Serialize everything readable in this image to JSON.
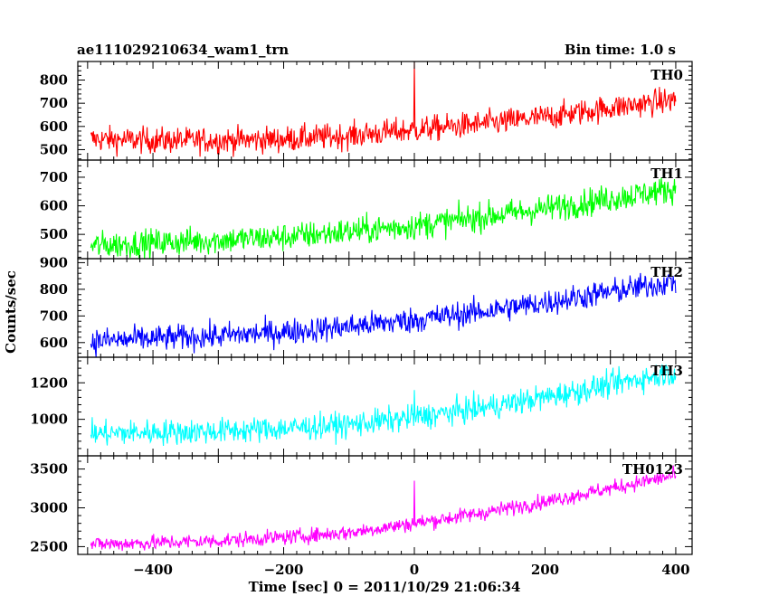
{
  "chart_data": {
    "type": "line",
    "title": "ae111029210634_wam1_trn",
    "subtitle": "Bin time: 1.0 s",
    "xlabel": "Time [sec] 0 = 2011/10/29 21:06:34",
    "ylabel": "Counts/sec",
    "xlim": [
      -515,
      425
    ],
    "x_ticks": [
      "−400",
      "−200",
      "0",
      "200",
      "400"
    ],
    "grid": false,
    "panels": [
      {
        "name": "TH0",
        "color": "#ff0000",
        "ylim": [
          455,
          880
        ],
        "y_ticks": [
          "500",
          "600",
          "700",
          "800"
        ],
        "x": [
          -495,
          -400,
          -300,
          -200,
          -100,
          0,
          100,
          200,
          300,
          400
        ],
        "values": [
          545,
          540,
          540,
          545,
          560,
          585,
          610,
          640,
          680,
          715
        ],
        "noise": 40,
        "spikes": [
          {
            "x": 0,
            "value": 880
          }
        ]
      },
      {
        "name": "TH1",
        "color": "#00ff00",
        "ylim": [
          415,
          760
        ],
        "y_ticks": [
          "500",
          "600",
          "700"
        ],
        "x": [
          -495,
          -400,
          -300,
          -200,
          -100,
          0,
          100,
          200,
          300,
          400
        ],
        "values": [
          460,
          470,
          480,
          490,
          510,
          530,
          560,
          590,
          625,
          660
        ],
        "noise": 35,
        "spikes": []
      },
      {
        "name": "TH2",
        "color": "#0000ff",
        "ylim": [
          545,
          915
        ],
        "y_ticks": [
          "600",
          "700",
          "800",
          "900"
        ],
        "x": [
          -495,
          -400,
          -300,
          -200,
          -100,
          0,
          100,
          200,
          300,
          400
        ],
        "values": [
          605,
          615,
          625,
          640,
          660,
          685,
          715,
          750,
          790,
          830
        ],
        "noise": 35,
        "spikes": []
      },
      {
        "name": "TH3",
        "color": "#00ffff",
        "ylim": [
          800,
          1340
        ],
        "y_ticks": [
          "1000",
          "1200"
        ],
        "x": [
          -495,
          -400,
          -300,
          -200,
          -100,
          0,
          100,
          200,
          300,
          400
        ],
        "values": [
          920,
          930,
          935,
          950,
          970,
          1010,
          1060,
          1120,
          1190,
          1260
        ],
        "noise": 50,
        "spikes": [
          {
            "x": 0,
            "value": 1160
          }
        ]
      },
      {
        "name": "TH0123",
        "color": "#ff00ff",
        "ylim": [
          2400,
          3670
        ],
        "y_ticks": [
          "2500",
          "3000",
          "3500"
        ],
        "x": [
          -495,
          -400,
          -300,
          -200,
          -100,
          0,
          100,
          200,
          300,
          400
        ],
        "values": [
          2530,
          2550,
          2575,
          2620,
          2680,
          2800,
          2930,
          3080,
          3250,
          3420
        ],
        "noise": 70,
        "spikes": [
          {
            "x": 0,
            "value": 3350
          }
        ]
      }
    ]
  }
}
